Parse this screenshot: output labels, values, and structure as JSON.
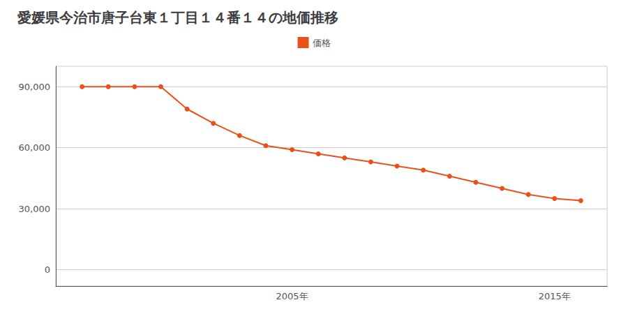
{
  "chart_data": {
    "type": "line",
    "title": "愛媛県今治市唐子台東１丁目１４番１４の地価推移",
    "x": [
      1997,
      1998,
      1999,
      2000,
      2001,
      2002,
      2003,
      2004,
      2005,
      2006,
      2007,
      2008,
      2009,
      2010,
      2011,
      2012,
      2013,
      2014,
      2015,
      2016
    ],
    "series": [
      {
        "name": "価格",
        "color": "#e8521a",
        "marker": "circle",
        "values": [
          90000,
          90000,
          90000,
          90000,
          79000,
          72000,
          66000,
          61000,
          59000,
          57000,
          55000,
          53000,
          51000,
          49000,
          46000,
          43000,
          40000,
          37000,
          35000,
          34000
        ]
      }
    ],
    "xlim": [
      1996,
      2017
    ],
    "xticks": [
      {
        "value": 2005,
        "label": "2005年"
      },
      {
        "value": 2015,
        "label": "2015年"
      }
    ],
    "ylim": [
      -8000,
      100000
    ],
    "yticks": [
      0,
      {
        "value": 30000,
        "label": "30,000"
      },
      {
        "value": 60000,
        "label": "60,000"
      },
      {
        "value": 90000,
        "label": "90,000"
      }
    ],
    "grid": true,
    "legend": "top"
  }
}
